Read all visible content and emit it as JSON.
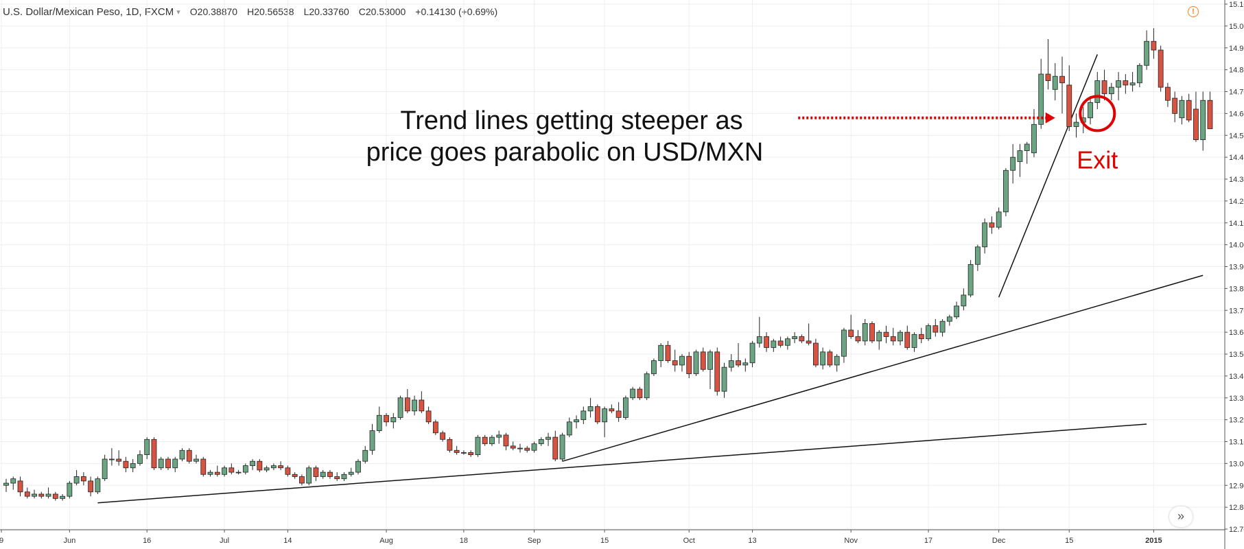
{
  "header": {
    "symbol": "U.S. Dollar/Mexican Peso, 1D, FXCM",
    "caret": "▾",
    "open": "O20.38870",
    "high": "H20.56538",
    "low": "L20.33760",
    "close": "C20.53000",
    "change": "+0.14130 (+0.69%)"
  },
  "warning_icon": "alert-icon",
  "scroll_button": "»",
  "colors": {
    "up": "#6ba583",
    "down": "#d75442",
    "grid": "#eeeeee",
    "annotation": "#e00000"
  },
  "chart_data": {
    "type": "candlestick",
    "title": "U.S. Dollar/Mexican Peso, 1D, FXCM",
    "ylim": [
      12.7,
      15.1
    ],
    "y_ticks": [
      "15.10000",
      "15.00000",
      "14.90000",
      "14.80000",
      "14.70000",
      "14.60000",
      "14.50000",
      "14.40000",
      "14.30000",
      "14.20000",
      "14.10000",
      "14.00000",
      "13.90000",
      "13.80000",
      "13.70000",
      "13.60000",
      "13.50000",
      "13.40000",
      "13.30000",
      "13.20000",
      "13.10000",
      "13.00000",
      "12.90000",
      "12.80000",
      "12.70000"
    ],
    "x_ticks": [
      {
        "label": "9",
        "bar": -1,
        "bold": false
      },
      {
        "label": "Jun",
        "bar": 9,
        "bold": false
      },
      {
        "label": "16",
        "bar": 20,
        "bold": false
      },
      {
        "label": "Jul",
        "bar": 31,
        "bold": false
      },
      {
        "label": "14",
        "bar": 40,
        "bold": false
      },
      {
        "label": "Aug",
        "bar": 54,
        "bold": false
      },
      {
        "label": "18",
        "bar": 65,
        "bold": false
      },
      {
        "label": "Sep",
        "bar": 75,
        "bold": false
      },
      {
        "label": "15",
        "bar": 85,
        "bold": false
      },
      {
        "label": "Oct",
        "bar": 97,
        "bold": false
      },
      {
        "label": "13",
        "bar": 106,
        "bold": false
      },
      {
        "label": "Nov",
        "bar": 120,
        "bold": false
      },
      {
        "label": "17",
        "bar": 131,
        "bold": false
      },
      {
        "label": "Dec",
        "bar": 141,
        "bold": false
      },
      {
        "label": "15",
        "bar": 151,
        "bold": false
      },
      {
        "label": "2015",
        "bar": 163,
        "bold": true
      }
    ],
    "candles": [
      {
        "o": 12.9,
        "h": 12.93,
        "l": 12.87,
        "c": 12.91
      },
      {
        "o": 12.91,
        "h": 12.94,
        "l": 12.88,
        "c": 12.93
      },
      {
        "o": 12.92,
        "h": 12.94,
        "l": 12.85,
        "c": 12.87
      },
      {
        "o": 12.87,
        "h": 12.89,
        "l": 12.84,
        "c": 12.85
      },
      {
        "o": 12.85,
        "h": 12.88,
        "l": 12.84,
        "c": 12.86
      },
      {
        "o": 12.86,
        "h": 12.87,
        "l": 12.84,
        "c": 12.85
      },
      {
        "o": 12.85,
        "h": 12.89,
        "l": 12.84,
        "c": 12.86
      },
      {
        "o": 12.86,
        "h": 12.87,
        "l": 12.83,
        "c": 12.84
      },
      {
        "o": 12.84,
        "h": 12.86,
        "l": 12.83,
        "c": 12.85
      },
      {
        "o": 12.85,
        "h": 12.92,
        "l": 12.84,
        "c": 12.91
      },
      {
        "o": 12.91,
        "h": 12.97,
        "l": 12.9,
        "c": 12.94
      },
      {
        "o": 12.94,
        "h": 12.96,
        "l": 12.9,
        "c": 12.92
      },
      {
        "o": 12.92,
        "h": 12.94,
        "l": 12.85,
        "c": 12.87
      },
      {
        "o": 12.87,
        "h": 12.94,
        "l": 12.86,
        "c": 12.93
      },
      {
        "o": 12.93,
        "h": 13.04,
        "l": 12.92,
        "c": 13.02
      },
      {
        "o": 13.02,
        "h": 13.07,
        "l": 12.99,
        "c": 13.02
      },
      {
        "o": 13.02,
        "h": 13.06,
        "l": 12.99,
        "c": 13.01
      },
      {
        "o": 13.01,
        "h": 13.03,
        "l": 12.96,
        "c": 12.98
      },
      {
        "o": 12.98,
        "h": 13.02,
        "l": 12.96,
        "c": 13.0
      },
      {
        "o": 13.0,
        "h": 13.06,
        "l": 12.99,
        "c": 13.04
      },
      {
        "o": 13.04,
        "h": 13.12,
        "l": 13.02,
        "c": 13.11
      },
      {
        "o": 13.11,
        "h": 13.12,
        "l": 12.97,
        "c": 12.98
      },
      {
        "o": 12.98,
        "h": 13.03,
        "l": 12.97,
        "c": 13.02
      },
      {
        "o": 13.02,
        "h": 13.03,
        "l": 12.97,
        "c": 12.98
      },
      {
        "o": 12.98,
        "h": 13.03,
        "l": 12.96,
        "c": 13.02
      },
      {
        "o": 13.02,
        "h": 13.07,
        "l": 13.01,
        "c": 13.06
      },
      {
        "o": 13.06,
        "h": 13.07,
        "l": 13.0,
        "c": 13.01
      },
      {
        "o": 13.01,
        "h": 13.04,
        "l": 13.0,
        "c": 13.02
      },
      {
        "o": 13.02,
        "h": 13.03,
        "l": 12.94,
        "c": 12.95
      },
      {
        "o": 12.95,
        "h": 12.97,
        "l": 12.94,
        "c": 12.96
      },
      {
        "o": 12.96,
        "h": 12.99,
        "l": 12.94,
        "c": 12.95
      },
      {
        "o": 12.95,
        "h": 12.99,
        "l": 12.94,
        "c": 12.98
      },
      {
        "o": 12.98,
        "h": 13.0,
        "l": 12.95,
        "c": 12.96
      },
      {
        "o": 12.96,
        "h": 12.97,
        "l": 12.95,
        "c": 12.96
      },
      {
        "o": 12.96,
        "h": 13.0,
        "l": 12.95,
        "c": 12.99
      },
      {
        "o": 12.99,
        "h": 13.02,
        "l": 12.97,
        "c": 13.01
      },
      {
        "o": 13.01,
        "h": 13.02,
        "l": 12.96,
        "c": 12.97
      },
      {
        "o": 12.97,
        "h": 12.99,
        "l": 12.96,
        "c": 12.98
      },
      {
        "o": 12.98,
        "h": 13.0,
        "l": 12.97,
        "c": 12.99
      },
      {
        "o": 12.99,
        "h": 13.01,
        "l": 12.97,
        "c": 12.98
      },
      {
        "o": 12.98,
        "h": 12.99,
        "l": 12.94,
        "c": 12.95
      },
      {
        "o": 12.95,
        "h": 12.96,
        "l": 12.93,
        "c": 12.94
      },
      {
        "o": 12.94,
        "h": 12.95,
        "l": 12.9,
        "c": 12.91
      },
      {
        "o": 12.91,
        "h": 12.99,
        "l": 12.9,
        "c": 12.98
      },
      {
        "o": 12.98,
        "h": 12.99,
        "l": 12.92,
        "c": 12.94
      },
      {
        "o": 12.94,
        "h": 12.97,
        "l": 12.93,
        "c": 12.96
      },
      {
        "o": 12.96,
        "h": 12.97,
        "l": 12.93,
        "c": 12.94
      },
      {
        "o": 12.94,
        "h": 12.96,
        "l": 12.92,
        "c": 12.93
      },
      {
        "o": 12.93,
        "h": 12.96,
        "l": 12.92,
        "c": 12.95
      },
      {
        "o": 12.95,
        "h": 12.98,
        "l": 12.94,
        "c": 12.96
      },
      {
        "o": 12.96,
        "h": 13.02,
        "l": 12.95,
        "c": 13.01
      },
      {
        "o": 13.01,
        "h": 13.08,
        "l": 13.0,
        "c": 13.06
      },
      {
        "o": 13.06,
        "h": 13.18,
        "l": 13.04,
        "c": 13.15
      },
      {
        "o": 13.15,
        "h": 13.26,
        "l": 13.14,
        "c": 13.22
      },
      {
        "o": 13.22,
        "h": 13.23,
        "l": 13.17,
        "c": 13.19
      },
      {
        "o": 13.19,
        "h": 13.23,
        "l": 13.16,
        "c": 13.21
      },
      {
        "o": 13.21,
        "h": 13.31,
        "l": 13.2,
        "c": 13.3
      },
      {
        "o": 13.3,
        "h": 13.34,
        "l": 13.23,
        "c": 13.24
      },
      {
        "o": 13.24,
        "h": 13.31,
        "l": 13.22,
        "c": 13.29
      },
      {
        "o": 13.29,
        "h": 13.33,
        "l": 13.23,
        "c": 13.24
      },
      {
        "o": 13.24,
        "h": 13.26,
        "l": 13.18,
        "c": 13.19
      },
      {
        "o": 13.19,
        "h": 13.2,
        "l": 13.13,
        "c": 13.14
      },
      {
        "o": 13.14,
        "h": 13.15,
        "l": 13.1,
        "c": 13.11
      },
      {
        "o": 13.11,
        "h": 13.12,
        "l": 13.05,
        "c": 13.06
      },
      {
        "o": 13.06,
        "h": 13.08,
        "l": 13.04,
        "c": 13.05
      },
      {
        "o": 13.05,
        "h": 13.06,
        "l": 13.04,
        "c": 13.05
      },
      {
        "o": 13.05,
        "h": 13.06,
        "l": 13.03,
        "c": 13.04
      },
      {
        "o": 13.04,
        "h": 13.13,
        "l": 13.03,
        "c": 13.12
      },
      {
        "o": 13.12,
        "h": 13.13,
        "l": 13.08,
        "c": 13.09
      },
      {
        "o": 13.09,
        "h": 13.13,
        "l": 13.08,
        "c": 13.12
      },
      {
        "o": 13.12,
        "h": 13.15,
        "l": 13.09,
        "c": 13.13
      },
      {
        "o": 13.13,
        "h": 13.14,
        "l": 13.06,
        "c": 13.08
      },
      {
        "o": 13.08,
        "h": 13.1,
        "l": 13.06,
        "c": 13.07
      },
      {
        "o": 13.07,
        "h": 13.09,
        "l": 13.05,
        "c": 13.07
      },
      {
        "o": 13.07,
        "h": 13.08,
        "l": 13.05,
        "c": 13.06
      },
      {
        "o": 13.06,
        "h": 13.1,
        "l": 13.05,
        "c": 13.09
      },
      {
        "o": 13.09,
        "h": 13.12,
        "l": 13.08,
        "c": 13.11
      },
      {
        "o": 13.11,
        "h": 13.14,
        "l": 13.08,
        "c": 13.12
      },
      {
        "o": 13.12,
        "h": 13.15,
        "l": 13.01,
        "c": 13.02
      },
      {
        "o": 13.02,
        "h": 13.14,
        "l": 13.01,
        "c": 13.13
      },
      {
        "o": 13.13,
        "h": 13.21,
        "l": 13.12,
        "c": 13.19
      },
      {
        "o": 13.19,
        "h": 13.22,
        "l": 13.16,
        "c": 13.2
      },
      {
        "o": 13.2,
        "h": 13.26,
        "l": 13.18,
        "c": 13.24
      },
      {
        "o": 13.24,
        "h": 13.3,
        "l": 13.21,
        "c": 13.26
      },
      {
        "o": 13.26,
        "h": 13.27,
        "l": 13.18,
        "c": 13.19
      },
      {
        "o": 13.19,
        "h": 13.26,
        "l": 13.12,
        "c": 13.25
      },
      {
        "o": 13.25,
        "h": 13.27,
        "l": 13.23,
        "c": 13.24
      },
      {
        "o": 13.24,
        "h": 13.28,
        "l": 13.19,
        "c": 13.21
      },
      {
        "o": 13.21,
        "h": 13.31,
        "l": 13.2,
        "c": 13.3
      },
      {
        "o": 13.3,
        "h": 13.35,
        "l": 13.29,
        "c": 13.34
      },
      {
        "o": 13.34,
        "h": 13.35,
        "l": 13.29,
        "c": 13.3
      },
      {
        "o": 13.3,
        "h": 13.42,
        "l": 13.29,
        "c": 13.41
      },
      {
        "o": 13.41,
        "h": 13.48,
        "l": 13.4,
        "c": 13.47
      },
      {
        "o": 13.47,
        "h": 13.55,
        "l": 13.44,
        "c": 13.54
      },
      {
        "o": 13.54,
        "h": 13.56,
        "l": 13.46,
        "c": 13.47
      },
      {
        "o": 13.47,
        "h": 13.52,
        "l": 13.42,
        "c": 13.45
      },
      {
        "o": 13.45,
        "h": 13.5,
        "l": 13.42,
        "c": 13.49
      },
      {
        "o": 13.49,
        "h": 13.51,
        "l": 13.39,
        "c": 13.41
      },
      {
        "o": 13.41,
        "h": 13.52,
        "l": 13.4,
        "c": 13.51
      },
      {
        "o": 13.51,
        "h": 13.53,
        "l": 13.42,
        "c": 13.43
      },
      {
        "o": 13.43,
        "h": 13.52,
        "l": 13.34,
        "c": 13.51
      },
      {
        "o": 13.51,
        "h": 13.53,
        "l": 13.31,
        "c": 13.33
      },
      {
        "o": 13.33,
        "h": 13.46,
        "l": 13.3,
        "c": 13.44
      },
      {
        "o": 13.44,
        "h": 13.5,
        "l": 13.42,
        "c": 13.47
      },
      {
        "o": 13.47,
        "h": 13.55,
        "l": 13.44,
        "c": 13.45
      },
      {
        "o": 13.45,
        "h": 13.48,
        "l": 13.42,
        "c": 13.46
      },
      {
        "o": 13.46,
        "h": 13.56,
        "l": 13.44,
        "c": 13.55
      },
      {
        "o": 13.55,
        "h": 13.67,
        "l": 13.53,
        "c": 13.58
      },
      {
        "o": 13.58,
        "h": 13.6,
        "l": 13.51,
        "c": 13.53
      },
      {
        "o": 13.53,
        "h": 13.57,
        "l": 13.51,
        "c": 13.56
      },
      {
        "o": 13.56,
        "h": 13.58,
        "l": 13.53,
        "c": 13.54
      },
      {
        "o": 13.54,
        "h": 13.58,
        "l": 13.52,
        "c": 13.57
      },
      {
        "o": 13.57,
        "h": 13.6,
        "l": 13.55,
        "c": 13.58
      },
      {
        "o": 13.58,
        "h": 13.59,
        "l": 13.55,
        "c": 13.56
      },
      {
        "o": 13.56,
        "h": 13.64,
        "l": 13.54,
        "c": 13.55
      },
      {
        "o": 13.55,
        "h": 13.57,
        "l": 13.44,
        "c": 13.45
      },
      {
        "o": 13.45,
        "h": 13.53,
        "l": 13.43,
        "c": 13.51
      },
      {
        "o": 13.51,
        "h": 13.52,
        "l": 13.44,
        "c": 13.45
      },
      {
        "o": 13.45,
        "h": 13.5,
        "l": 13.42,
        "c": 13.49
      },
      {
        "o": 13.49,
        "h": 13.62,
        "l": 13.46,
        "c": 13.61
      },
      {
        "o": 13.61,
        "h": 13.68,
        "l": 13.57,
        "c": 13.58
      },
      {
        "o": 13.58,
        "h": 13.61,
        "l": 13.55,
        "c": 13.56
      },
      {
        "o": 13.56,
        "h": 13.66,
        "l": 13.54,
        "c": 13.64
      },
      {
        "o": 13.64,
        "h": 13.65,
        "l": 13.55,
        "c": 13.56
      },
      {
        "o": 13.56,
        "h": 13.61,
        "l": 13.52,
        "c": 13.6
      },
      {
        "o": 13.6,
        "h": 13.63,
        "l": 13.55,
        "c": 13.58
      },
      {
        "o": 13.58,
        "h": 13.62,
        "l": 13.54,
        "c": 13.56
      },
      {
        "o": 13.56,
        "h": 13.61,
        "l": 13.54,
        "c": 13.6
      },
      {
        "o": 13.6,
        "h": 13.63,
        "l": 13.52,
        "c": 13.53
      },
      {
        "o": 13.53,
        "h": 13.6,
        "l": 13.51,
        "c": 13.59
      },
      {
        "o": 13.59,
        "h": 13.62,
        "l": 13.55,
        "c": 13.57
      },
      {
        "o": 13.57,
        "h": 13.64,
        "l": 13.56,
        "c": 13.63
      },
      {
        "o": 13.63,
        "h": 13.66,
        "l": 13.58,
        "c": 13.6
      },
      {
        "o": 13.6,
        "h": 13.66,
        "l": 13.58,
        "c": 13.65
      },
      {
        "o": 13.65,
        "h": 13.68,
        "l": 13.63,
        "c": 13.67
      },
      {
        "o": 13.67,
        "h": 13.74,
        "l": 13.66,
        "c": 13.72
      },
      {
        "o": 13.72,
        "h": 13.8,
        "l": 13.7,
        "c": 13.77
      },
      {
        "o": 13.77,
        "h": 13.93,
        "l": 13.76,
        "c": 13.91
      },
      {
        "o": 13.91,
        "h": 14.0,
        "l": 13.88,
        "c": 13.99
      },
      {
        "o": 13.99,
        "h": 14.12,
        "l": 13.96,
        "c": 14.1
      },
      {
        "o": 14.1,
        "h": 14.13,
        "l": 14.05,
        "c": 14.08
      },
      {
        "o": 14.08,
        "h": 14.17,
        "l": 14.07,
        "c": 14.15
      },
      {
        "o": 14.15,
        "h": 14.35,
        "l": 14.13,
        "c": 14.34
      },
      {
        "o": 14.34,
        "h": 14.46,
        "l": 14.28,
        "c": 14.4
      },
      {
        "o": 14.38,
        "h": 14.46,
        "l": 14.31,
        "c": 14.43
      },
      {
        "o": 14.43,
        "h": 14.47,
        "l": 14.37,
        "c": 14.46
      },
      {
        "o": 14.42,
        "h": 14.62,
        "l": 14.4,
        "c": 14.55
      },
      {
        "o": 14.55,
        "h": 14.85,
        "l": 14.53,
        "c": 14.78
      },
      {
        "o": 14.78,
        "h": 14.94,
        "l": 14.71,
        "c": 14.75
      },
      {
        "o": 14.71,
        "h": 14.83,
        "l": 14.66,
        "c": 14.77
      },
      {
        "o": 14.77,
        "h": 14.86,
        "l": 14.6,
        "c": 14.74
      },
      {
        "o": 14.73,
        "h": 14.82,
        "l": 14.52,
        "c": 14.54
      },
      {
        "o": 14.54,
        "h": 14.6,
        "l": 14.49,
        "c": 14.56
      },
      {
        "o": 14.56,
        "h": 14.63,
        "l": 14.51,
        "c": 14.58
      },
      {
        "o": 14.58,
        "h": 14.68,
        "l": 14.55,
        "c": 14.65
      },
      {
        "o": 14.65,
        "h": 14.79,
        "l": 14.62,
        "c": 14.75
      },
      {
        "o": 14.75,
        "h": 14.8,
        "l": 14.66,
        "c": 14.69
      },
      {
        "o": 14.69,
        "h": 14.74,
        "l": 14.66,
        "c": 14.72
      },
      {
        "o": 14.72,
        "h": 14.79,
        "l": 14.66,
        "c": 14.75
      },
      {
        "o": 14.75,
        "h": 14.78,
        "l": 14.69,
        "c": 14.73
      },
      {
        "o": 14.73,
        "h": 14.79,
        "l": 14.7,
        "c": 14.74
      },
      {
        "o": 14.74,
        "h": 14.83,
        "l": 14.72,
        "c": 14.82
      },
      {
        "o": 14.82,
        "h": 14.98,
        "l": 14.8,
        "c": 14.93
      },
      {
        "o": 14.93,
        "h": 14.99,
        "l": 14.85,
        "c": 14.89
      },
      {
        "o": 14.89,
        "h": 14.91,
        "l": 14.7,
        "c": 14.72
      },
      {
        "o": 14.72,
        "h": 14.74,
        "l": 14.63,
        "c": 14.66
      },
      {
        "o": 14.67,
        "h": 14.7,
        "l": 14.56,
        "c": 14.6
      },
      {
        "o": 14.58,
        "h": 14.68,
        "l": 14.55,
        "c": 14.66
      },
      {
        "o": 14.66,
        "h": 14.69,
        "l": 14.56,
        "c": 14.57
      },
      {
        "o": 14.62,
        "h": 14.7,
        "l": 14.47,
        "c": 14.48
      },
      {
        "o": 14.48,
        "h": 14.7,
        "l": 14.43,
        "c": 14.66
      },
      {
        "o": 14.66,
        "h": 14.7,
        "l": 14.53,
        "c": 14.53
      }
    ],
    "trendlines": [
      {
        "name": "trendline-shallow",
        "from": {
          "bar": 13,
          "price": 12.82
        },
        "to": {
          "bar": 162,
          "price": 13.18
        }
      },
      {
        "name": "trendline-medium",
        "from": {
          "bar": 79,
          "price": 13.01
        },
        "to": {
          "bar": 170,
          "price": 13.86
        }
      },
      {
        "name": "trendline-steep",
        "from": {
          "bar": 141,
          "price": 13.76
        },
        "to": {
          "bar": 155,
          "price": 14.87
        }
      }
    ],
    "annotations": {
      "text_line1": "Trend lines getting steeper as",
      "text_line2": "price goes parabolic on USD/MXN",
      "exit_label": "Exit",
      "arrow": {
        "from_bar": 112.5,
        "to_bar": 149,
        "price": 14.58
      },
      "exit_circle": {
        "bar": 155,
        "price": 14.6
      }
    }
  }
}
